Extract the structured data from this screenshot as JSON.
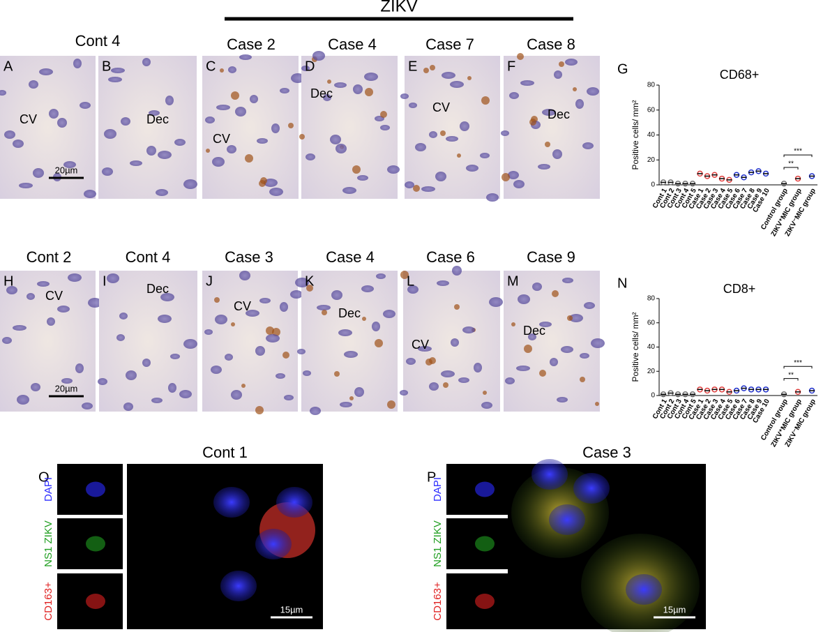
{
  "header": {
    "group": "ZIKV"
  },
  "row1": {
    "titles": [
      "Cont 4",
      "Case 2",
      "Case 4",
      "Case 7",
      "Case 8"
    ],
    "panels": [
      {
        "letter": "A",
        "label": "CV",
        "scale": "20µm"
      },
      {
        "letter": "B",
        "label": "Dec"
      },
      {
        "letter": "C",
        "label": "CV"
      },
      {
        "letter": "D",
        "label": "Dec"
      },
      {
        "letter": "E",
        "label": "CV"
      },
      {
        "letter": "F",
        "label": "Dec"
      }
    ]
  },
  "row2": {
    "titles": [
      "Cont 2",
      "Cont 4",
      "Case 3",
      "Case 4",
      "Case 6",
      "Case 9"
    ],
    "panels": [
      {
        "letter": "H",
        "label": "CV",
        "scale": "20µm"
      },
      {
        "letter": "I",
        "label": "Dec"
      },
      {
        "letter": "J",
        "label": "CV"
      },
      {
        "letter": "K",
        "label": "Dec"
      },
      {
        "letter": "L",
        "label": "CV"
      },
      {
        "letter": "M",
        "label": "Dec"
      }
    ]
  },
  "fluorescence": [
    {
      "letter": "O",
      "title": "Cont 1",
      "channels": [
        "DAPI",
        "NS1 ZIKV",
        "CD163+"
      ],
      "scale": "15µm"
    },
    {
      "letter": "P",
      "title": "Case 3",
      "channels": [
        "DAPI",
        "NS1 ZIKV",
        "CD163+"
      ],
      "scale": "15µm"
    }
  ],
  "chart_data": [
    {
      "type": "scatter",
      "letter": "G",
      "title": "CD68+",
      "y_label": "Positive cells/ mm²",
      "categories": [
        "Cont 1",
        "Cont 2",
        "Cont 3",
        "Cont 4",
        "Cont 5",
        "Case 1",
        "Case 2",
        "Case 3",
        "Case 4",
        "Case 5",
        "Case 6",
        "Case 7",
        "Case 8",
        "Case 9",
        "Case 10",
        "Control group",
        "ZIKV⁺MIC group",
        "ZIKV⁻MIC group"
      ],
      "values": [
        2,
        2,
        1,
        1,
        1,
        9,
        7,
        8,
        5,
        4,
        8,
        6,
        10,
        11,
        9,
        1,
        5,
        7
      ],
      "colors": [
        "#777",
        "#777",
        "#777",
        "#777",
        "#777",
        "#e0403f",
        "#e0403f",
        "#e0403f",
        "#e0403f",
        "#e0403f",
        "#2233cc",
        "#2233cc",
        "#2233cc",
        "#2233cc",
        "#2233cc",
        "#777",
        "#e0403f",
        "#2233cc"
      ],
      "ylim": [
        0,
        80
      ],
      "yticks": [
        0,
        20,
        40,
        60,
        80
      ],
      "annotations": [
        "***",
        "**"
      ]
    },
    {
      "type": "scatter",
      "letter": "N",
      "title": "CD8+",
      "y_label": "Positive cells/ mm²",
      "categories": [
        "Cont 1",
        "Cont 2",
        "Cont 3",
        "Cont 4",
        "Cont 5",
        "Case 1",
        "Case 2",
        "Case 3",
        "Case 4",
        "Case 5",
        "Case 6",
        "Case 7",
        "Case 8",
        "Case 9",
        "Case 10",
        "Control group",
        "ZIKV⁺MIC group",
        "ZIKV⁻MIC group"
      ],
      "values": [
        1,
        2,
        1,
        1,
        1,
        5,
        4,
        5,
        5,
        3,
        4,
        6,
        5,
        5,
        5,
        1,
        3,
        4
      ],
      "colors": [
        "#777",
        "#777",
        "#777",
        "#777",
        "#777",
        "#e0403f",
        "#e0403f",
        "#e0403f",
        "#e0403f",
        "#e0403f",
        "#2233cc",
        "#2233cc",
        "#2233cc",
        "#2233cc",
        "#2233cc",
        "#777",
        "#e0403f",
        "#2233cc"
      ],
      "ylim": [
        0,
        80
      ],
      "yticks": [
        0,
        20,
        40,
        60,
        80
      ],
      "annotations": [
        "***",
        "**"
      ]
    }
  ]
}
